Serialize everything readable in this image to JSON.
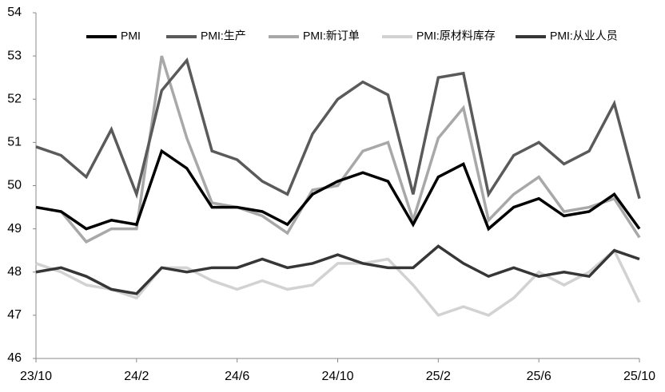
{
  "chart_data": {
    "type": "line",
    "categories": [
      "23/10",
      null,
      null,
      null,
      "24/2",
      null,
      null,
      null,
      "24/6",
      null,
      null,
      null,
      "24/10",
      null,
      null,
      null,
      "25/2",
      null,
      null,
      null,
      "25/6",
      null,
      null,
      null,
      "25/10"
    ],
    "series": [
      {
        "name": "PMI",
        "color": "#000000",
        "values": [
          49.5,
          49.4,
          49.0,
          49.2,
          49.1,
          50.8,
          50.4,
          49.5,
          49.5,
          49.4,
          49.1,
          49.8,
          50.1,
          50.3,
          50.1,
          49.1,
          50.2,
          50.5,
          49.0,
          49.5,
          49.7,
          49.3,
          49.4,
          49.8,
          49.0
        ]
      },
      {
        "name": "PMI:生产",
        "color": "#5a5a5a",
        "values": [
          50.9,
          50.7,
          50.2,
          51.3,
          49.8,
          52.2,
          52.9,
          50.8,
          50.6,
          50.1,
          49.8,
          51.2,
          52.0,
          52.4,
          52.1,
          49.8,
          52.5,
          52.6,
          49.8,
          50.7,
          51.0,
          50.5,
          50.8,
          51.9,
          49.7
        ]
      },
      {
        "name": "PMI:新订单",
        "color": "#a8a8a8",
        "values": [
          49.5,
          49.4,
          48.7,
          49.0,
          49.0,
          53.0,
          51.1,
          49.6,
          49.5,
          49.3,
          48.9,
          49.9,
          50.0,
          50.8,
          51.0,
          49.2,
          51.1,
          51.8,
          49.2,
          49.8,
          50.2,
          49.4,
          49.5,
          49.7,
          48.8
        ]
      },
      {
        "name": "PMI:原材料库存",
        "color": "#d2d2d2",
        "values": [
          48.2,
          48.0,
          47.7,
          47.6,
          47.4,
          48.1,
          48.1,
          47.8,
          47.6,
          47.8,
          47.6,
          47.7,
          48.2,
          48.2,
          48.3,
          47.7,
          47.0,
          47.2,
          47.0,
          47.4,
          48.0,
          47.7,
          48.0,
          48.5,
          47.3
        ]
      },
      {
        "name": "PMI:从业人员",
        "color": "#363636",
        "values": [
          48.0,
          48.1,
          47.9,
          47.6,
          47.5,
          48.1,
          48.0,
          48.1,
          48.1,
          48.3,
          48.1,
          48.2,
          48.4,
          48.2,
          48.1,
          48.1,
          48.6,
          48.2,
          47.9,
          48.1,
          47.9,
          48.0,
          47.9,
          48.5,
          48.3
        ]
      }
    ],
    "ylim": [
      46,
      54
    ],
    "yticks": [
      46,
      47,
      48,
      49,
      50,
      51,
      52,
      53,
      54
    ],
    "grid": false
  }
}
